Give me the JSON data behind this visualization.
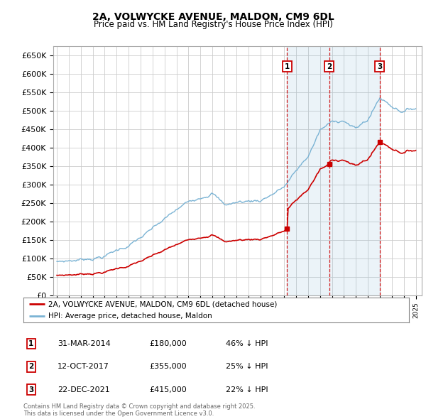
{
  "title_line1": "2A, VOLWYCKE AVENUE, MALDON, CM9 6DL",
  "title_line2": "Price paid vs. HM Land Registry's House Price Index (HPI)",
  "ylim": [
    0,
    675000
  ],
  "yticks": [
    0,
    50000,
    100000,
    150000,
    200000,
    250000,
    300000,
    350000,
    400000,
    450000,
    500000,
    550000,
    600000,
    650000
  ],
  "ytick_labels": [
    "£0",
    "£50K",
    "£100K",
    "£150K",
    "£200K",
    "£250K",
    "£300K",
    "£350K",
    "£400K",
    "£450K",
    "£500K",
    "£550K",
    "£600K",
    "£650K"
  ],
  "hpi_color": "#7ab3d4",
  "hpi_fill_color": "#d6e8f5",
  "price_color": "#cc0000",
  "dashed_line_color": "#cc0000",
  "grid_color": "#cccccc",
  "background_color": "#ffffff",
  "sale1_date": 2014.25,
  "sale1_price": 180000,
  "sale2_date": 2017.78,
  "sale2_price": 355000,
  "sale3_date": 2021.97,
  "sale3_price": 415000,
  "legend_label1": "2A, VOLWYCKE AVENUE, MALDON, CM9 6DL (detached house)",
  "legend_label2": "HPI: Average price, detached house, Maldon",
  "footnote": "Contains HM Land Registry data © Crown copyright and database right 2025.\nThis data is licensed under the Open Government Licence v3.0.",
  "table_rows": [
    [
      "1",
      "31-MAR-2014",
      "£180,000",
      "46% ↓ HPI"
    ],
    [
      "2",
      "12-OCT-2017",
      "£355,000",
      "25% ↓ HPI"
    ],
    [
      "3",
      "22-DEC-2021",
      "£415,000",
      "22% ↓ HPI"
    ]
  ]
}
